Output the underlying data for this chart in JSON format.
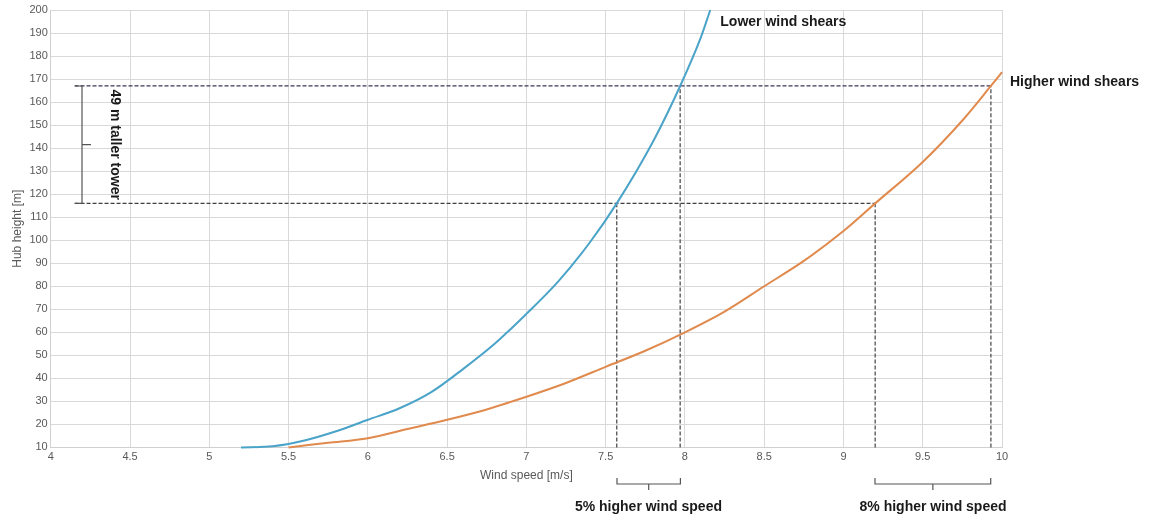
{
  "chart_data": {
    "type": "line",
    "xlabel": "Wind speed [m/s]",
    "ylabel": "Hub height [m]",
    "xlim": [
      4,
      10
    ],
    "xticks": [
      4,
      4.5,
      5,
      5.5,
      6,
      6.5,
      7,
      7.5,
      8,
      8.5,
      9,
      9.5,
      10
    ],
    "ylim": [
      10,
      200
    ],
    "yticks": [
      10,
      20,
      30,
      40,
      50,
      60,
      70,
      80,
      90,
      100,
      110,
      120,
      130,
      140,
      150,
      160,
      170,
      180,
      190,
      200
    ],
    "grid": true,
    "legend": false,
    "marker": "none",
    "series": [
      {
        "color": "#4aa3c8",
        "line_style": "solid",
        "x": [
          5.2,
          5.4,
          5.6,
          5.8,
          6,
          6.2,
          6.4,
          6.6,
          6.8,
          7,
          7.2,
          7.4,
          7.57,
          7.8,
          7.97,
          8.1,
          8.16
        ],
        "values": [
          10,
          10.5,
          13,
          17,
          22,
          27,
          34,
          44,
          55,
          68,
          82,
          99,
          116,
          143,
          167,
          188,
          200
        ]
      },
      {
        "color": "#e08a4e",
        "line_style": "solid",
        "x": [
          5.5,
          5.75,
          6,
          6.25,
          6.5,
          6.75,
          7,
          7.25,
          7.5,
          7.75,
          8,
          8.25,
          8.5,
          8.75,
          9,
          9.2,
          9.5,
          9.75,
          9.93,
          10
        ],
        "values": [
          10,
          12,
          14,
          18,
          22,
          26.5,
          32,
          38,
          45,
          52,
          60,
          69,
          80,
          91,
          104,
          116,
          134,
          152,
          167,
          173
        ]
      },
      {
        "color": "#3d3552",
        "line_style": "dashed",
        "x": [
          4.15,
          9.93
        ],
        "values": [
          167,
          167
        ]
      },
      {
        "color": "#404040",
        "line_style": "dashed",
        "x": [
          4.15,
          9.2
        ],
        "values": [
          116,
          116
        ]
      },
      {
        "color": "#505050",
        "line_style": "dashed",
        "x": [
          7.57,
          7.57
        ],
        "values": [
          10,
          116
        ]
      },
      {
        "color": "#505050",
        "line_style": "dashed",
        "x": [
          7.97,
          7.97
        ],
        "values": [
          10,
          167
        ]
      },
      {
        "color": "#505050",
        "line_style": "dashed",
        "x": [
          9.2,
          9.2
        ],
        "values": [
          10,
          116
        ]
      },
      {
        "color": "#505050",
        "line_style": "dashed",
        "x": [
          9.93,
          9.93
        ],
        "values": [
          10,
          167
        ]
      }
    ],
    "annotations": [
      "Lower wind shears",
      "Higher wind shears",
      "49 m taller tower",
      "5% higher wind speed",
      "8% higher wind speed"
    ]
  }
}
